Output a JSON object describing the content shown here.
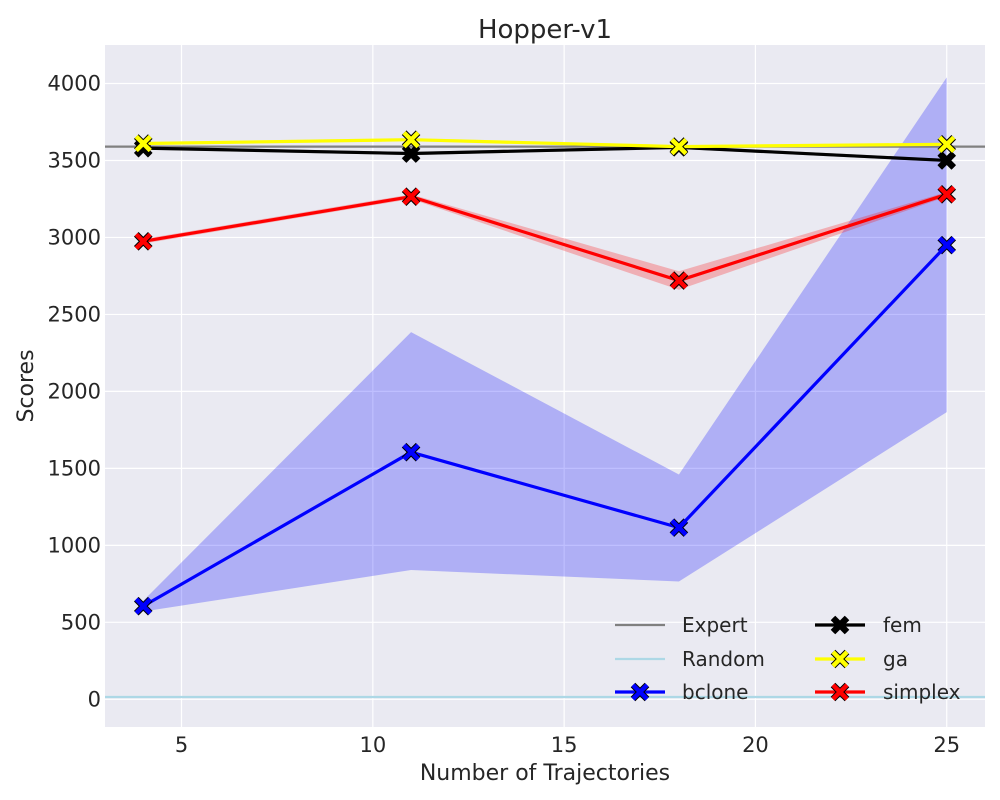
{
  "chart_data": {
    "type": "line",
    "title": "Hopper-v1",
    "xlabel": "Number of Trajectories",
    "ylabel": "Scores",
    "xlim": [
      3,
      26
    ],
    "ylim": [
      -180,
      4250
    ],
    "xticks": [
      5,
      10,
      15,
      20,
      25
    ],
    "yticks": [
      0,
      500,
      1000,
      1500,
      2000,
      2500,
      3000,
      3500,
      4000
    ],
    "grid": true,
    "background": "#eaeaf2",
    "legend_position": "lower-right",
    "x": [
      4,
      11,
      18,
      25
    ],
    "reference_lines": [
      {
        "name": "Expert",
        "value": 3590,
        "color": "#808080"
      },
      {
        "name": "Random",
        "value": 15,
        "color": "#add8e6"
      }
    ],
    "series": [
      {
        "name": "bclone",
        "color": "#0000ff",
        "values": [
          605,
          1605,
          1115,
          2950
        ],
        "lower": [
          570,
          840,
          765,
          1865
        ],
        "upper": [
          640,
          2385,
          1460,
          4040
        ],
        "band_color": "#0000ff"
      },
      {
        "name": "fem",
        "color": "#000000",
        "values": [
          3580,
          3545,
          3585,
          3500
        ],
        "lower": [
          3570,
          3535,
          3575,
          3490
        ],
        "upper": [
          3590,
          3555,
          3595,
          3510
        ],
        "band_color": "#000000"
      },
      {
        "name": "ga",
        "color": "#ffff00",
        "values": [
          3610,
          3635,
          3590,
          3605
        ],
        "lower": [
          3600,
          3625,
          3580,
          3595
        ],
        "upper": [
          3620,
          3645,
          3600,
          3615
        ],
        "band_color": "#ffff00"
      },
      {
        "name": "simplex",
        "color": "#ff0000",
        "values": [
          2975,
          3265,
          2720,
          3280
        ],
        "lower": [
          2960,
          3250,
          2660,
          3265
        ],
        "upper": [
          2990,
          3280,
          2780,
          3295
        ],
        "band_color": "#ff0000"
      }
    ],
    "legend": [
      {
        "name": "Expert",
        "kind": "line",
        "color": "#808080"
      },
      {
        "name": "Random",
        "kind": "line",
        "color": "#add8e6"
      },
      {
        "name": "bclone",
        "kind": "marker",
        "color": "#0000ff"
      },
      {
        "name": "fem",
        "kind": "marker",
        "color": "#000000"
      },
      {
        "name": "ga",
        "kind": "marker",
        "color": "#ffff00"
      },
      {
        "name": "simplex",
        "kind": "marker",
        "color": "#ff0000"
      }
    ]
  }
}
